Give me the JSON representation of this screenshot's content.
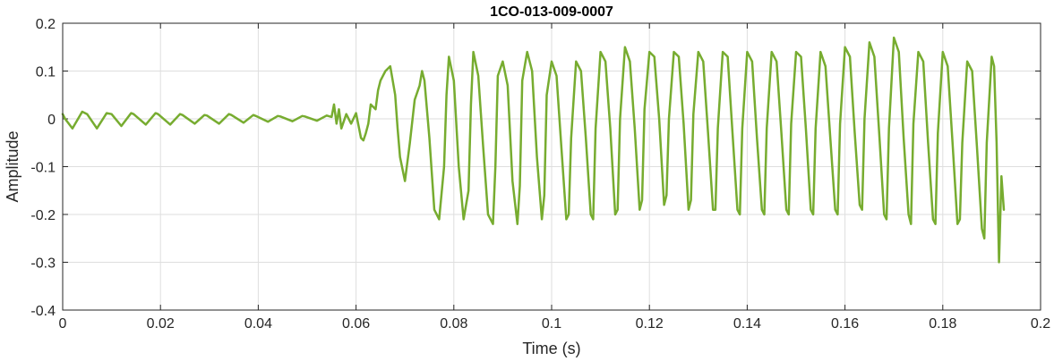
{
  "chart_data": {
    "type": "line",
    "title": "1CO-013-009-0007",
    "xlabel": "Time (s)",
    "ylabel": "Amplitude",
    "xlim": [
      0,
      0.2
    ],
    "ylim": [
      -0.4,
      0.2
    ],
    "grid": true,
    "x_ticks": [
      "0",
      "0.02",
      "0.04",
      "0.06",
      "0.08",
      "0.1",
      "0.12",
      "0.14",
      "0.16",
      "0.18",
      "0.2"
    ],
    "y_ticks": [
      "0.2",
      "0.1",
      "0",
      "-0.1",
      "-0.2",
      "-0.3",
      "-0.4"
    ],
    "series": [
      {
        "color": "#77ac30",
        "x": [
          0.0,
          0.0005,
          0.002,
          0.004,
          0.005,
          0.007,
          0.009,
          0.01,
          0.012,
          0.014,
          0.0145,
          0.017,
          0.019,
          0.0195,
          0.022,
          0.024,
          0.0245,
          0.027,
          0.029,
          0.0295,
          0.032,
          0.034,
          0.0345,
          0.037,
          0.039,
          0.0395,
          0.042,
          0.044,
          0.0445,
          0.047,
          0.049,
          0.0495,
          0.052,
          0.054,
          0.055,
          0.0555,
          0.056,
          0.0565,
          0.057,
          0.058,
          0.059,
          0.06,
          0.061,
          0.0615,
          0.062,
          0.0625,
          0.063,
          0.064,
          0.0645,
          0.065,
          0.0655,
          0.066,
          0.067,
          0.068,
          0.0685,
          0.069,
          0.07,
          0.071,
          0.072,
          0.073,
          0.0735,
          0.074,
          0.075,
          0.076,
          0.077,
          0.078,
          0.0785,
          0.079,
          0.08,
          0.081,
          0.082,
          0.083,
          0.0835,
          0.084,
          0.085,
          0.086,
          0.087,
          0.088,
          0.0885,
          0.089,
          0.09,
          0.091,
          0.092,
          0.093,
          0.0935,
          0.094,
          0.095,
          0.096,
          0.097,
          0.098,
          0.0985,
          0.099,
          0.1,
          0.101,
          0.102,
          0.103,
          0.1035,
          0.104,
          0.105,
          0.106,
          0.107,
          0.108,
          0.1085,
          0.109,
          0.11,
          0.111,
          0.112,
          0.113,
          0.1135,
          0.114,
          0.115,
          0.116,
          0.117,
          0.118,
          0.1185,
          0.119,
          0.12,
          0.121,
          0.122,
          0.123,
          0.1235,
          0.124,
          0.125,
          0.126,
          0.127,
          0.128,
          0.1285,
          0.129,
          0.13,
          0.131,
          0.132,
          0.133,
          0.1335,
          0.134,
          0.135,
          0.136,
          0.137,
          0.138,
          0.1385,
          0.139,
          0.14,
          0.141,
          0.142,
          0.143,
          0.1435,
          0.144,
          0.145,
          0.146,
          0.147,
          0.148,
          0.1485,
          0.149,
          0.15,
          0.151,
          0.152,
          0.153,
          0.1535,
          0.154,
          0.155,
          0.156,
          0.157,
          0.158,
          0.1585,
          0.159,
          0.16,
          0.161,
          0.162,
          0.163,
          0.1635,
          0.164,
          0.165,
          0.166,
          0.167,
          0.168,
          0.1685,
          0.169,
          0.17,
          0.171,
          0.172,
          0.173,
          0.1735,
          0.174,
          0.175,
          0.176,
          0.177,
          0.178,
          0.1785,
          0.179,
          0.18,
          0.181,
          0.182,
          0.183,
          0.1835,
          0.184,
          0.185,
          0.186,
          0.187,
          0.188,
          0.1885,
          0.189,
          0.19,
          0.1905,
          0.191,
          0.1915,
          0.192,
          0.1925
        ],
        "y": [
          0.01,
          0.0,
          -0.02,
          0.015,
          0.01,
          -0.02,
          0.012,
          0.01,
          -0.015,
          0.012,
          0.01,
          -0.012,
          0.012,
          0.01,
          -0.012,
          0.01,
          0.008,
          -0.01,
          0.008,
          0.007,
          -0.01,
          0.01,
          0.008,
          -0.008,
          0.008,
          0.006,
          -0.006,
          0.006,
          0.005,
          -0.005,
          0.006,
          0.005,
          -0.004,
          0.007,
          0.004,
          0.03,
          -0.01,
          0.02,
          -0.02,
          0.01,
          -0.01,
          0.012,
          -0.04,
          -0.045,
          -0.03,
          -0.01,
          0.03,
          0.02,
          0.06,
          0.08,
          0.09,
          0.1,
          0.11,
          0.05,
          -0.02,
          -0.08,
          -0.13,
          -0.05,
          0.04,
          0.07,
          0.1,
          0.08,
          -0.04,
          -0.19,
          -0.21,
          -0.1,
          0.05,
          0.13,
          0.08,
          -0.1,
          -0.21,
          -0.15,
          0.03,
          0.14,
          0.09,
          -0.06,
          -0.2,
          -0.22,
          -0.1,
          0.09,
          0.12,
          0.07,
          -0.13,
          -0.22,
          -0.14,
          0.08,
          0.14,
          0.1,
          -0.08,
          -0.21,
          -0.16,
          0.05,
          0.12,
          0.09,
          -0.06,
          -0.21,
          -0.2,
          -0.04,
          0.12,
          0.1,
          -0.04,
          -0.2,
          -0.21,
          -0.02,
          0.14,
          0.12,
          -0.02,
          -0.2,
          -0.19,
          0.0,
          0.15,
          0.12,
          -0.02,
          -0.19,
          -0.17,
          0.02,
          0.14,
          0.13,
          0.0,
          -0.18,
          -0.16,
          0.0,
          0.14,
          0.13,
          -0.01,
          -0.19,
          -0.17,
          0.01,
          0.14,
          0.12,
          -0.03,
          -0.19,
          -0.19,
          -0.02,
          0.14,
          0.13,
          -0.03,
          -0.19,
          -0.2,
          -0.02,
          0.14,
          0.12,
          -0.04,
          -0.19,
          -0.2,
          -0.02,
          0.14,
          0.12,
          -0.03,
          -0.19,
          -0.2,
          -0.01,
          0.14,
          0.13,
          -0.02,
          -0.19,
          -0.2,
          -0.02,
          0.14,
          0.11,
          -0.04,
          -0.19,
          -0.2,
          -0.01,
          0.15,
          0.13,
          -0.03,
          -0.18,
          -0.19,
          0.0,
          0.16,
          0.13,
          -0.03,
          -0.2,
          -0.21,
          -0.02,
          0.17,
          0.14,
          -0.04,
          -0.2,
          -0.22,
          -0.01,
          0.14,
          0.12,
          -0.05,
          -0.21,
          -0.22,
          -0.03,
          0.14,
          0.11,
          -0.05,
          -0.22,
          -0.21,
          -0.05,
          0.12,
          0.1,
          -0.06,
          -0.23,
          -0.25,
          -0.05,
          0.13,
          0.11,
          -0.05,
          -0.3,
          -0.12,
          -0.19
        ]
      }
    ]
  }
}
